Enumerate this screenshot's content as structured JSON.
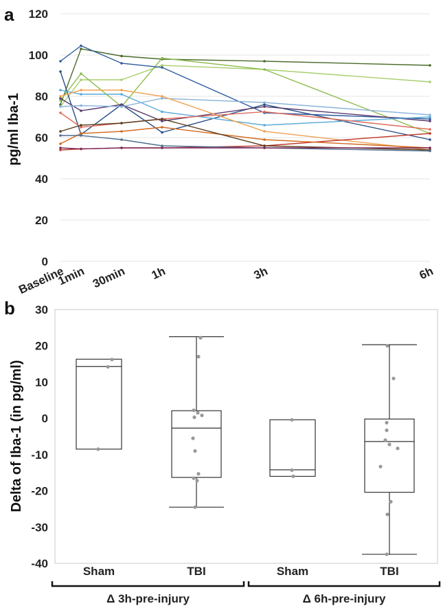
{
  "panel_a_label": "a",
  "panel_b_label": "b",
  "chart_data": [
    {
      "type": "line",
      "ylabel": "pg/ml Iba-1",
      "xlabel": "",
      "ylim": [
        0,
        120
      ],
      "yticks": [
        "0",
        "20",
        "40",
        "60",
        "80",
        "100",
        "120"
      ],
      "categories": [
        "Baseline",
        "1min",
        "30min",
        "1h",
        "3h",
        "6h"
      ],
      "x_hours": [
        0,
        0.0167,
        0.5,
        1,
        3,
        6
      ],
      "series": [
        {
          "name": "s1",
          "color": "#4a6b2a",
          "values": [
            76,
            103,
            99.5,
            98,
            97,
            95
          ]
        },
        {
          "name": "s2",
          "color": "#a8cf6e",
          "values": [
            75,
            88,
            88,
            95,
            93,
            87
          ]
        },
        {
          "name": "s3",
          "color": "#8dbb4e",
          "values": [
            78,
            91,
            75,
            98.5,
            93,
            62
          ]
        },
        {
          "name": "s4",
          "color": "#2e5aa0",
          "values": [
            97,
            104.5,
            96,
            94,
            72,
            69
          ]
        },
        {
          "name": "s5",
          "color": "#274f86",
          "values": [
            92,
            61.5,
            76,
            62.5,
            76,
            59
          ]
        },
        {
          "name": "s6",
          "color": "#5a3a6e",
          "values": [
            79,
            73,
            76,
            68,
            75,
            68
          ]
        },
        {
          "name": "s7",
          "color": "#5aaad6",
          "values": [
            83,
            81,
            81,
            72.5,
            66,
            70
          ]
        },
        {
          "name": "s8",
          "color": "#8ab4dc",
          "values": [
            75,
            75.5,
            75,
            79,
            77,
            71
          ]
        },
        {
          "name": "s9",
          "color": "#f0a050",
          "values": [
            80,
            83,
            83,
            80,
            63,
            54
          ]
        },
        {
          "name": "s10",
          "color": "#e06a5a",
          "values": [
            72,
            65,
            67,
            69,
            72.5,
            64
          ]
        },
        {
          "name": "s11",
          "color": "#c0392b",
          "values": [
            54,
            54.5,
            55,
            55,
            56,
            62
          ]
        },
        {
          "name": "s12",
          "color": "#d2691e",
          "values": [
            57,
            62,
            63,
            65,
            59,
            55
          ]
        },
        {
          "name": "s13",
          "color": "#5c3d1e",
          "values": [
            63,
            66,
            67,
            69,
            56,
            54
          ]
        },
        {
          "name": "s14",
          "color": "#4f6f8f",
          "values": [
            61,
            61,
            59,
            56,
            55,
            53.5
          ]
        },
        {
          "name": "s15",
          "color": "#7d2a5a",
          "values": [
            55,
            54.5,
            55,
            55,
            55,
            55
          ]
        }
      ]
    },
    {
      "type": "box",
      "ylabel": "Delta of Iba-1 (in pg/ml)",
      "xlabel": "",
      "ylim": [
        -40,
        30
      ],
      "yticks": [
        "-40",
        "-30",
        "-20",
        "-10",
        "0",
        "10",
        "20",
        "30"
      ],
      "categories": [
        "Sham",
        "TBI",
        "Sham",
        "TBI"
      ],
      "groups": [
        "Δ 3h-pre-injury",
        "Δ 6h-pre-injury"
      ],
      "boxes": [
        {
          "label": "Sham",
          "min": -8.5,
          "q1": -8.5,
          "median": 14.3,
          "q3": 16.3,
          "max": 16.3,
          "points": [
            16.2,
            14.2,
            -8.5
          ]
        },
        {
          "label": "TBI",
          "min": -24.5,
          "q1": -16.3,
          "median": -2.7,
          "q3": 2.1,
          "max": 22.5,
          "points": [
            22.2,
            17.0,
            2.2,
            1.5,
            0.8,
            0.3,
            -5.5,
            -9.0,
            -15.3,
            -16.5,
            -17.2,
            -24.5
          ]
        },
        {
          "label": "Sham",
          "min": -16.0,
          "q1": -16.0,
          "median": -14.2,
          "q3": -0.4,
          "max": -0.4,
          "points": [
            -0.4,
            -14.3,
            -16.0
          ]
        },
        {
          "label": "TBI",
          "min": -37.5,
          "q1": -20.4,
          "median": -6.4,
          "q3": -0.2,
          "max": 20.3,
          "points": [
            20.0,
            11.0,
            -1.2,
            -3.3,
            -6.0,
            -7.2,
            -8.3,
            -13.3,
            -23.0,
            -26.5,
            -37.5
          ]
        }
      ]
    }
  ]
}
